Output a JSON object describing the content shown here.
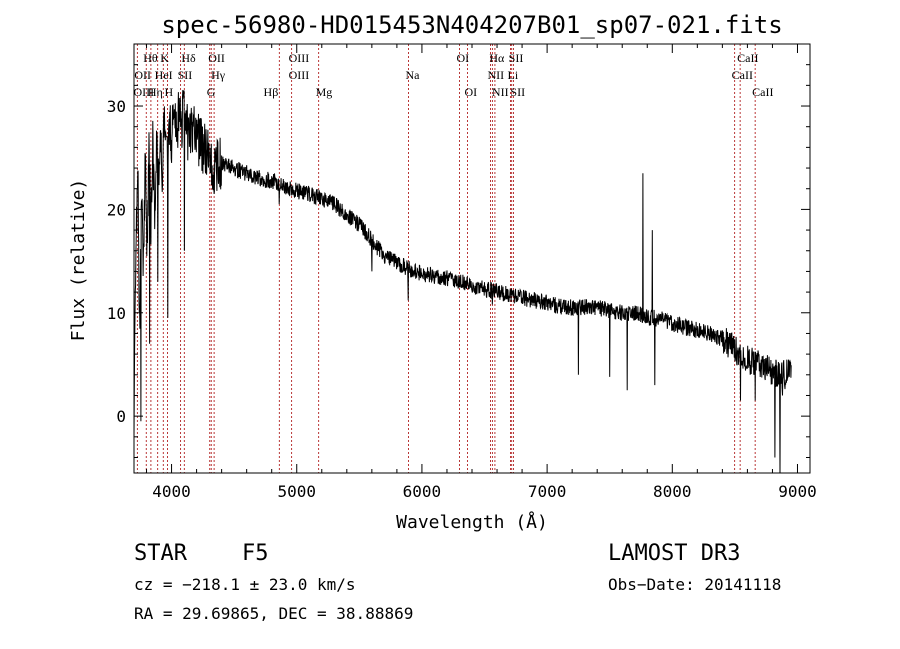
{
  "chart_data": {
    "type": "line",
    "title": "spec-56980-HD015453N404207B01_sp07-021.fits",
    "xlabel": "Wavelength (Å)",
    "ylabel": "Flux (relative)",
    "xlim": [
      3700,
      9100
    ],
    "ylim": [
      -5.5,
      36
    ],
    "xticks": [
      4000,
      5000,
      6000,
      7000,
      8000,
      9000
    ],
    "yticks": [
      0,
      10,
      20,
      30
    ],
    "series": [
      {
        "name": "flux",
        "anchors": [
          [
            3700,
            0
          ],
          [
            3715,
            15
          ],
          [
            3730,
            24
          ],
          [
            3745,
            8
          ],
          [
            3760,
            21
          ],
          [
            3775,
            14
          ],
          [
            3790,
            25
          ],
          [
            3805,
            16
          ],
          [
            3820,
            27
          ],
          [
            3835,
            18
          ],
          [
            3850,
            26
          ],
          [
            3865,
            20
          ],
          [
            3880,
            27
          ],
          [
            3895,
            23
          ],
          [
            3910,
            28
          ],
          [
            3925,
            24
          ],
          [
            3940,
            29
          ],
          [
            3960,
            25
          ],
          [
            3980,
            28
          ],
          [
            4000,
            27
          ],
          [
            4020,
            29
          ],
          [
            4040,
            27
          ],
          [
            4060,
            30
          ],
          [
            4080,
            28
          ],
          [
            4100,
            31
          ],
          [
            4130,
            27
          ],
          [
            4160,
            28
          ],
          [
            4200,
            27
          ],
          [
            4250,
            26
          ],
          [
            4300,
            25
          ],
          [
            4350,
            24
          ],
          [
            4400,
            24.5
          ],
          [
            4500,
            24
          ],
          [
            4600,
            23.5
          ],
          [
            4700,
            23
          ],
          [
            4800,
            22.8
          ],
          [
            4900,
            22.3
          ],
          [
            5000,
            21.8
          ],
          [
            5100,
            21.5
          ],
          [
            5200,
            21
          ],
          [
            5300,
            20.5
          ],
          [
            5400,
            19.5
          ],
          [
            5500,
            18.5
          ],
          [
            5600,
            17
          ],
          [
            5700,
            15.5
          ],
          [
            5800,
            14.8
          ],
          [
            5900,
            14.2
          ],
          [
            6000,
            13.8
          ],
          [
            6100,
            13.6
          ],
          [
            6200,
            13.3
          ],
          [
            6300,
            13
          ],
          [
            6400,
            12.6
          ],
          [
            6500,
            12.3
          ],
          [
            6600,
            12
          ],
          [
            6700,
            11.8
          ],
          [
            6800,
            11.5
          ],
          [
            6900,
            11.2
          ],
          [
            7000,
            11
          ],
          [
            7100,
            10.6
          ],
          [
            7200,
            10.5
          ],
          [
            7300,
            10.6
          ],
          [
            7400,
            10.5
          ],
          [
            7500,
            10.2
          ],
          [
            7600,
            10
          ],
          [
            7700,
            10
          ],
          [
            7800,
            9.6
          ],
          [
            7900,
            9.4
          ],
          [
            8000,
            9
          ],
          [
            8100,
            8.6
          ],
          [
            8200,
            8.3
          ],
          [
            8300,
            8
          ],
          [
            8400,
            7.5
          ],
          [
            8500,
            6.5
          ],
          [
            8600,
            5.5
          ],
          [
            8700,
            5
          ],
          [
            8800,
            4.2
          ],
          [
            8900,
            4
          ],
          [
            8950,
            4.5
          ]
        ],
        "features": [
          [
            3755,
            -0.5
          ],
          [
            3825,
            7
          ],
          [
            3890,
            13
          ],
          [
            3970,
            9.5
          ],
          [
            4102,
            16
          ],
          [
            4340,
            21.5
          ],
          [
            4861,
            20.5
          ],
          [
            5600,
            14
          ],
          [
            5890,
            11.2
          ],
          [
            6563,
            10.8
          ],
          [
            7250,
            4
          ],
          [
            7500,
            3.8
          ],
          [
            7640,
            2.5
          ],
          [
            7765,
            23.5
          ],
          [
            7840,
            18
          ],
          [
            7860,
            3
          ],
          [
            8545,
            1.5
          ],
          [
            8662,
            1.5
          ],
          [
            8820,
            -4
          ],
          [
            8860,
            -6
          ],
          [
            8880,
            2
          ]
        ],
        "noise_amplitude": 0.8
      }
    ],
    "lines": [
      {
        "label": "Hθ",
        "wavelength": 3798,
        "row": 0,
        "side": "left"
      },
      {
        "label": "K",
        "wavelength": 3934,
        "row": 0,
        "side": "left"
      },
      {
        "label": "Hδ",
        "wavelength": 4102,
        "row": 0,
        "side": "left"
      },
      {
        "label": "OII",
        "wavelength": 4317,
        "row": 0,
        "side": "left"
      },
      {
        "label": "OIII",
        "wavelength": 4959,
        "row": 0,
        "side": "left"
      },
      {
        "label": "OI",
        "wavelength": 6300,
        "row": 0,
        "side": "left"
      },
      {
        "label": "Hα",
        "wavelength": 6563,
        "row": 0,
        "side": "left"
      },
      {
        "label": "SII",
        "wavelength": 6717,
        "row": 0,
        "side": "left"
      },
      {
        "label": "CaII",
        "wavelength": 8542,
        "row": 0,
        "side": "left"
      },
      {
        "label": "OII",
        "wavelength": 3727,
        "row": 1,
        "side": "left"
      },
      {
        "label": "HeI",
        "wavelength": 3889,
        "row": 1,
        "side": "left"
      },
      {
        "label": "SII",
        "wavelength": 4072,
        "row": 1,
        "side": "left"
      },
      {
        "label": "Hγ",
        "wavelength": 4340,
        "row": 1,
        "side": "left"
      },
      {
        "label": "OIII",
        "wavelength": 4959,
        "row": 1,
        "side": "left"
      },
      {
        "label": "Na",
        "wavelength": 5893,
        "row": 1,
        "side": "left"
      },
      {
        "label": "NII",
        "wavelength": 6548,
        "row": 1,
        "side": "left"
      },
      {
        "label": "Li",
        "wavelength": 6708,
        "row": 1,
        "side": "left"
      },
      {
        "label": "CaII",
        "wavelength": 8498,
        "row": 1,
        "side": "left"
      },
      {
        "label": "OIII",
        "wavelength": 3720,
        "row": 2,
        "side": "left"
      },
      {
        "label": "Hη",
        "wavelength": 3835,
        "row": 2,
        "side": "left"
      },
      {
        "label": "H",
        "wavelength": 3968,
        "row": 2,
        "side": "left"
      },
      {
        "label": "G",
        "wavelength": 4305,
        "row": 2,
        "side": "left"
      },
      {
        "label": "Hβ",
        "wavelength": 4861,
        "row": 2,
        "side": "right"
      },
      {
        "label": "Mg",
        "wavelength": 5175,
        "row": 2,
        "side": "left"
      },
      {
        "label": "OI",
        "wavelength": 6364,
        "row": 2,
        "side": "left"
      },
      {
        "label": "NII",
        "wavelength": 6583,
        "row": 2,
        "side": "left"
      },
      {
        "label": "SII",
        "wavelength": 6731,
        "row": 2,
        "side": "left"
      },
      {
        "label": "CaII",
        "wavelength": 8662,
        "row": 2,
        "side": "left"
      }
    ]
  },
  "info": {
    "class_label": "STAR",
    "subclass": "F5",
    "survey": "LAMOST DR3",
    "cz_line": "cz = −218.1 ± 23.0 km/s",
    "obs_date_line": "Obs−Date: 20141118",
    "coords_line": "RA =  29.69865, DEC =  38.88869"
  },
  "colors": {
    "line_marker": "#b22222",
    "spectrum": "#000000",
    "axes": "#000000",
    "background": "#ffffff"
  }
}
